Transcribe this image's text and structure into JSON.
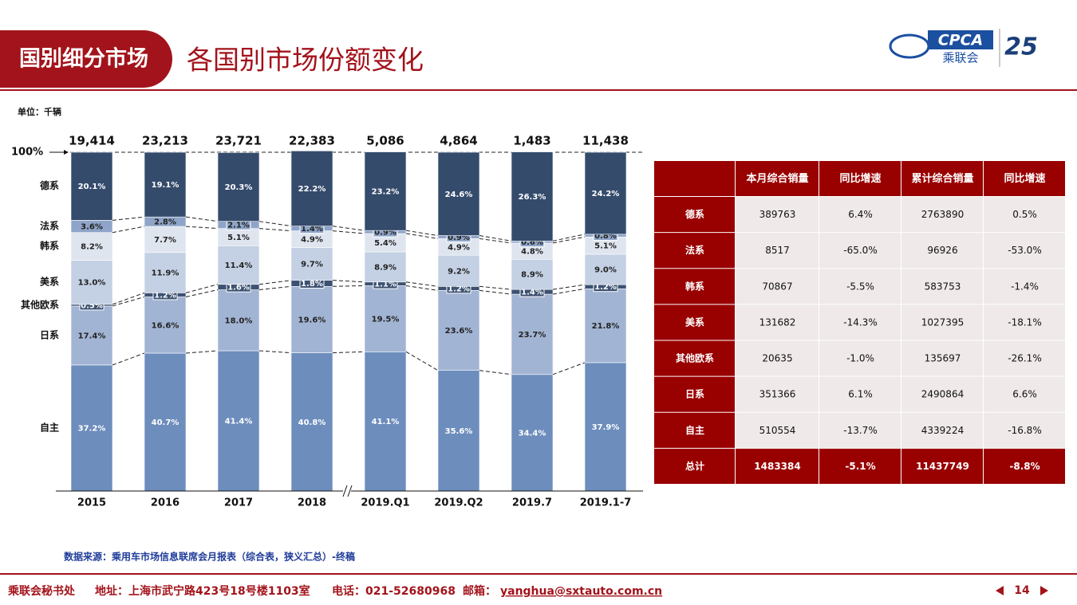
{
  "header": {
    "section": "国别细分市场",
    "title": "各国别市场份额变化",
    "logo_text": "CPCA",
    "logo_name": "乘联会",
    "anniversary": "25"
  },
  "unit": "单位：千辆",
  "chart_data": {
    "type": "stacked_bar",
    "categories": [
      "2015",
      "2016",
      "2017",
      "2018",
      "2019.Q1",
      "2019.Q2",
      "2019.7",
      "2019.1-7"
    ],
    "ylim": [
      0,
      100
    ],
    "yticks": [
      {
        "value": 100,
        "label": "100%"
      }
    ],
    "totals": {
      "values": [
        19414,
        23213,
        23721,
        22383,
        5086,
        4864,
        1483,
        11438
      ],
      "value_labels": [
        "19,414",
        "23,213",
        "23,721",
        "22,383",
        "5,086",
        "4,864",
        "1,483",
        "11,438"
      ]
    },
    "series": [
      {
        "name": "自主",
        "color": "#6d8dbd",
        "values": [
          37.2,
          40.7,
          41.4,
          40.8,
          41.1,
          35.6,
          34.4,
          37.9
        ],
        "value_labels": [
          "37.2%",
          "40.7%",
          "41.4%",
          "40.8%",
          "41.1%",
          "35.6%",
          "34.4%",
          "37.9%"
        ]
      },
      {
        "name": "日系",
        "color": "#a2b4d3",
        "values": [
          17.4,
          16.6,
          18.0,
          19.6,
          19.5,
          23.6,
          23.7,
          21.8
        ],
        "value_labels": [
          "17.4%",
          "16.6%",
          "18.0%",
          "19.6%",
          "19.5%",
          "23.6%",
          "23.7%",
          "21.8%"
        ]
      },
      {
        "name": "其他欧系",
        "color": "#3d5272",
        "values": [
          0.5,
          1.2,
          1.6,
          1.8,
          1.1,
          1.2,
          1.4,
          1.2
        ],
        "value_labels": [
          "0.5%",
          "1.2%",
          "1.6%",
          "1.8%",
          "1.1%",
          "1.2%",
          "1.4%",
          "1.2%"
        ]
      },
      {
        "name": "美系",
        "color": "#c4d0e4",
        "values": [
          13.0,
          11.9,
          11.4,
          9.7,
          8.9,
          9.2,
          8.9,
          9.0
        ],
        "value_labels": [
          "13.0%",
          "11.9%",
          "11.4%",
          "9.7%",
          "8.9%",
          "9.2%",
          "8.9%",
          "9.0%"
        ]
      },
      {
        "name": "韩系",
        "color": "#dfe5ef",
        "values": [
          8.2,
          7.7,
          5.1,
          4.9,
          5.4,
          4.9,
          4.8,
          5.1
        ],
        "value_labels": [
          "8.2%",
          "7.7%",
          "5.1%",
          "4.9%",
          "5.4%",
          "4.9%",
          "4.8%",
          "5.1%"
        ]
      },
      {
        "name": "法系",
        "color": "#8ea4c8",
        "values": [
          3.6,
          2.8,
          2.1,
          1.4,
          0.9,
          0.9,
          0.6,
          0.8
        ],
        "value_labels": [
          "3.6%",
          "2.8%",
          "2.1%",
          "1.4%",
          "0.9%",
          "0.9%",
          "0.6%",
          "0.8%"
        ]
      },
      {
        "name": "德系",
        "color": "#344b6c",
        "values": [
          20.1,
          19.1,
          20.3,
          22.2,
          23.2,
          24.6,
          26.3,
          24.2
        ],
        "value_labels": [
          "20.1%",
          "19.1%",
          "20.3%",
          "22.2%",
          "23.2%",
          "24.6%",
          "26.3%",
          "24.2%"
        ]
      }
    ]
  },
  "table": {
    "columns": [
      "本月综合销量",
      "同比增速",
      "累计综合销量",
      "同比增速"
    ],
    "rows": [
      [
        "德系",
        "389763",
        "6.4%",
        "2763890",
        "0.5%"
      ],
      [
        "法系",
        "8517",
        "-65.0%",
        "96926",
        "-53.0%"
      ],
      [
        "韩系",
        "70867",
        "-5.5%",
        "583753",
        "-1.4%"
      ],
      [
        "美系",
        "131682",
        "-14.3%",
        "1027395",
        "-18.1%"
      ],
      [
        "其他欧系",
        "20635",
        "-1.0%",
        "135697",
        "-26.1%"
      ],
      [
        "日系",
        "351366",
        "6.1%",
        "2490864",
        "6.6%"
      ],
      [
        "自主",
        "510554",
        "-13.7%",
        "4339224",
        "-16.8%"
      ],
      [
        "总计",
        "1483384",
        "-5.1%",
        "11437749",
        "-8.8%"
      ]
    ]
  },
  "source": "数据来源：乘用车市场信息联席会月报表（综合表，狭义汇总）-终稿",
  "footer": {
    "org": "乘联会秘书处",
    "address": "地址：上海市武宁路423号18号楼1103室",
    "phone": "电话：021-52680968",
    "email_label": "邮箱：",
    "email": "yanghua@sxtauto.com.cn",
    "page": "14"
  }
}
